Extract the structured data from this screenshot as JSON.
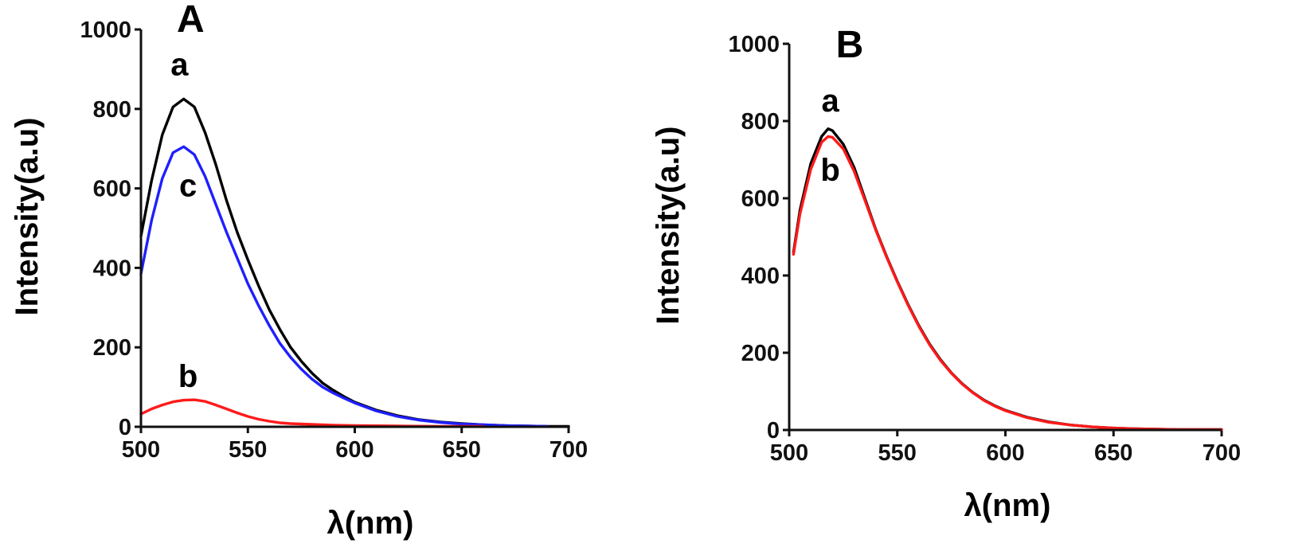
{
  "chart_data": [
    {
      "type": "line",
      "panel_label": "A",
      "xlabel": "λ(nm)",
      "ylabel": "Intensity(a.u)",
      "xlim": [
        500,
        700
      ],
      "ylim": [
        0,
        1000
      ],
      "xticks": [
        500,
        550,
        600,
        650,
        700
      ],
      "yticks": [
        0,
        200,
        400,
        600,
        800,
        1000
      ],
      "xtick_labels": [
        "500",
        "550",
        "600",
        "650",
        "700"
      ],
      "ytick_labels": [
        "0",
        "200",
        "400",
        "600",
        "800",
        "1000"
      ],
      "grid": false,
      "series": [
        {
          "name": "a",
          "color": "#000000",
          "points": [
            [
              500,
              480
            ],
            [
              505,
              620
            ],
            [
              510,
              735
            ],
            [
              515,
              805
            ],
            [
              520,
              825
            ],
            [
              525,
              805
            ],
            [
              530,
              740
            ],
            [
              535,
              660
            ],
            [
              540,
              570
            ],
            [
              545,
              490
            ],
            [
              550,
              420
            ],
            [
              555,
              355
            ],
            [
              560,
              295
            ],
            [
              565,
              245
            ],
            [
              570,
              200
            ],
            [
              575,
              165
            ],
            [
              580,
              135
            ],
            [
              585,
              110
            ],
            [
              590,
              92
            ],
            [
              595,
              76
            ],
            [
              600,
              62
            ],
            [
              610,
              42
            ],
            [
              620,
              28
            ],
            [
              630,
              18
            ],
            [
              640,
              12
            ],
            [
              650,
              8
            ],
            [
              660,
              5
            ],
            [
              670,
              3
            ],
            [
              680,
              2
            ],
            [
              690,
              1
            ],
            [
              700,
              1
            ]
          ]
        },
        {
          "name": "c",
          "color": "#1f1fff",
          "points": [
            [
              500,
              385
            ],
            [
              505,
              520
            ],
            [
              510,
              625
            ],
            [
              515,
              690
            ],
            [
              520,
              705
            ],
            [
              525,
              685
            ],
            [
              530,
              630
            ],
            [
              535,
              560
            ],
            [
              540,
              490
            ],
            [
              545,
              425
            ],
            [
              550,
              360
            ],
            [
              555,
              305
            ],
            [
              560,
              255
            ],
            [
              565,
              210
            ],
            [
              570,
              175
            ],
            [
              575,
              145
            ],
            [
              580,
              120
            ],
            [
              585,
              100
            ],
            [
              590,
              85
            ],
            [
              595,
              72
            ],
            [
              600,
              60
            ],
            [
              610,
              40
            ],
            [
              620,
              26
            ],
            [
              630,
              17
            ],
            [
              640,
              11
            ],
            [
              650,
              7
            ],
            [
              660,
              5
            ],
            [
              670,
              3
            ],
            [
              680,
              2
            ],
            [
              690,
              1
            ]
          ]
        },
        {
          "name": "b",
          "color": "#ff1a1a",
          "points": [
            [
              500,
              32
            ],
            [
              505,
              45
            ],
            [
              510,
              55
            ],
            [
              515,
              63
            ],
            [
              520,
              67
            ],
            [
              525,
              68
            ],
            [
              530,
              64
            ],
            [
              535,
              55
            ],
            [
              540,
              45
            ],
            [
              545,
              35
            ],
            [
              550,
              26
            ],
            [
              555,
              19
            ],
            [
              560,
              14
            ],
            [
              565,
              10
            ],
            [
              570,
              8
            ],
            [
              580,
              6
            ],
            [
              590,
              4
            ],
            [
              600,
              3
            ],
            [
              620,
              2
            ],
            [
              640,
              1
            ],
            [
              660,
              1
            ]
          ]
        }
      ],
      "curve_labels": [
        {
          "text": "a",
          "x": 518,
          "y": 885
        },
        {
          "text": "c",
          "x": 522,
          "y": 580
        },
        {
          "text": "b",
          "x": 522,
          "y": 100
        }
      ]
    },
    {
      "type": "line",
      "panel_label": "B",
      "xlabel": "λ(nm)",
      "ylabel": "Intensity(a.u)",
      "xlim": [
        500,
        700
      ],
      "ylim": [
        0,
        1000
      ],
      "xticks": [
        500,
        550,
        600,
        650,
        700
      ],
      "yticks": [
        0,
        200,
        400,
        600,
        800,
        1000
      ],
      "xtick_labels": [
        "500",
        "550",
        "600",
        "650",
        "700"
      ],
      "ytick_labels": [
        "0",
        "200",
        "400",
        "600",
        "800",
        "1000"
      ],
      "grid": false,
      "series": [
        {
          "name": "a",
          "color": "#000000",
          "points": [
            [
              502,
              460
            ],
            [
              505,
              570
            ],
            [
              510,
              690
            ],
            [
              515,
              760
            ],
            [
              518,
              780
            ],
            [
              520,
              775
            ],
            [
              525,
              740
            ],
            [
              530,
              680
            ],
            [
              535,
              600
            ],
            [
              540,
              520
            ],
            [
              545,
              450
            ],
            [
              550,
              385
            ],
            [
              555,
              325
            ],
            [
              560,
              270
            ],
            [
              565,
              222
            ],
            [
              570,
              182
            ],
            [
              575,
              148
            ],
            [
              580,
              120
            ],
            [
              585,
              97
            ],
            [
              590,
              78
            ],
            [
              595,
              63
            ],
            [
              600,
              51
            ],
            [
              610,
              33
            ],
            [
              620,
              21
            ],
            [
              630,
              13
            ],
            [
              640,
              8
            ],
            [
              650,
              5
            ],
            [
              660,
              3
            ],
            [
              670,
              2
            ],
            [
              680,
              1
            ],
            [
              700,
              1
            ]
          ]
        },
        {
          "name": "b",
          "color": "#ff1a1a",
          "points": [
            [
              502,
              455
            ],
            [
              505,
              560
            ],
            [
              510,
              675
            ],
            [
              515,
              745
            ],
            [
              518,
              760
            ],
            [
              520,
              758
            ],
            [
              525,
              728
            ],
            [
              530,
              670
            ],
            [
              535,
              595
            ],
            [
              540,
              518
            ],
            [
              545,
              448
            ],
            [
              550,
              383
            ],
            [
              555,
              323
            ],
            [
              560,
              268
            ],
            [
              565,
              220
            ],
            [
              570,
              180
            ],
            [
              575,
              147
            ],
            [
              580,
              119
            ],
            [
              585,
              96
            ],
            [
              590,
              77
            ],
            [
              595,
              62
            ],
            [
              600,
              50
            ],
            [
              610,
              32
            ],
            [
              620,
              20
            ],
            [
              630,
              13
            ],
            [
              640,
              8
            ],
            [
              650,
              5
            ],
            [
              660,
              3
            ],
            [
              670,
              2
            ],
            [
              680,
              1
            ],
            [
              700,
              1
            ]
          ]
        }
      ],
      "curve_labels": [
        {
          "text": "a",
          "x": 519,
          "y": 825
        },
        {
          "text": "b",
          "x": 519,
          "y": 645
        }
      ]
    }
  ]
}
